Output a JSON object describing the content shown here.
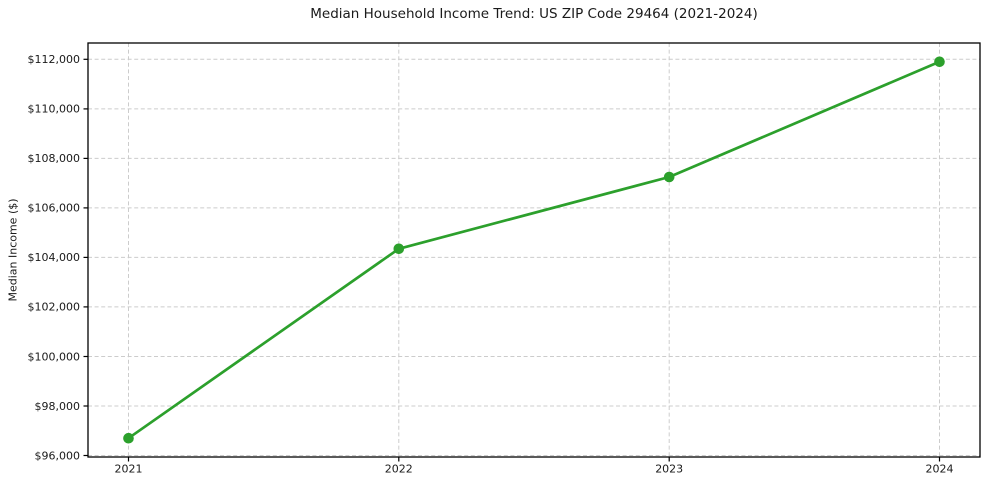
{
  "figure": {
    "background": "#ffffff"
  },
  "chart_data": {
    "type": "line",
    "title": "Median Household Income Trend: US ZIP Code 29464 (2021-2024)",
    "xlabel": "",
    "ylabel": "Median Income ($)",
    "categories": [
      "2021",
      "2022",
      "2023",
      "2024"
    ],
    "values": [
      96700,
      104350,
      107250,
      111900
    ],
    "y_ticks": [
      96000,
      98000,
      100000,
      102000,
      104000,
      106000,
      108000,
      110000,
      112000
    ],
    "y_tick_labels": [
      "$96,000",
      "$98,000",
      "$100,000",
      "$102,000",
      "$104,000",
      "$106,000",
      "$108,000",
      "$110,000",
      "$112,000"
    ],
    "ylim": [
      95940,
      112660
    ],
    "x_margin": 0.15,
    "grid": true,
    "grid_linestyle": "dashed",
    "legend_position": "none",
    "colors": {
      "line": "#2ca02c",
      "marker": "#2ca02c",
      "grid": "#cccccc",
      "axis": "#000000",
      "text": "#1a1a1a",
      "background": "#ffffff"
    }
  }
}
